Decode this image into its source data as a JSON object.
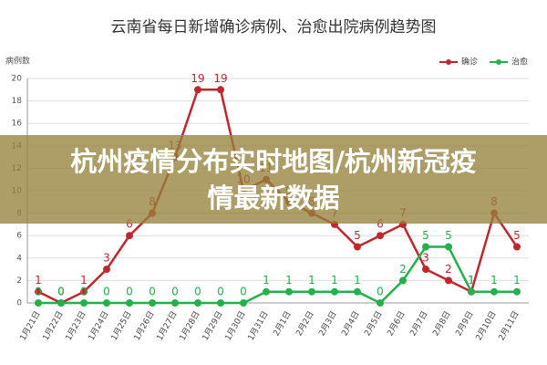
{
  "chart_data": {
    "type": "line",
    "title": "云南省每日新增确诊病例、治愈出院病例趋势图",
    "y_label": "病例数",
    "categories": [
      "1月21日",
      "1月22日",
      "1月23日",
      "1月24日",
      "1月25日",
      "1月26日",
      "1月27日",
      "1月28日",
      "1月29日",
      "1月30日",
      "1月31日",
      "2月1日",
      "2月2日",
      "2月3日",
      "2月4日",
      "2月5日",
      "2月6日",
      "2月7日",
      "2月8日",
      "2月9日",
      "2月10日",
      "2月11日"
    ],
    "series": [
      {
        "name": "确诊",
        "color": "#c0272d",
        "values": [
          1,
          0,
          1,
          3,
          6,
          8,
          13,
          19,
          19,
          10,
          11,
          9,
          8,
          7,
          5,
          6,
          7,
          3,
          2,
          1,
          8,
          5
        ]
      },
      {
        "name": "治愈",
        "color": "#22b14c",
        "values": [
          0,
          0,
          0,
          0,
          0,
          0,
          0,
          0,
          0,
          0,
          1,
          1,
          1,
          1,
          1,
          0,
          2,
          5,
          5,
          1,
          1,
          1
        ]
      }
    ],
    "ylim": [
      0,
      20
    ],
    "yticks": [
      0,
      2,
      4,
      6,
      8,
      10,
      12,
      14,
      16,
      18,
      20
    ],
    "grid": true,
    "legend": "top-right"
  },
  "banner": "杭州疫情分布实时地图/杭州新冠疫情最新数据"
}
